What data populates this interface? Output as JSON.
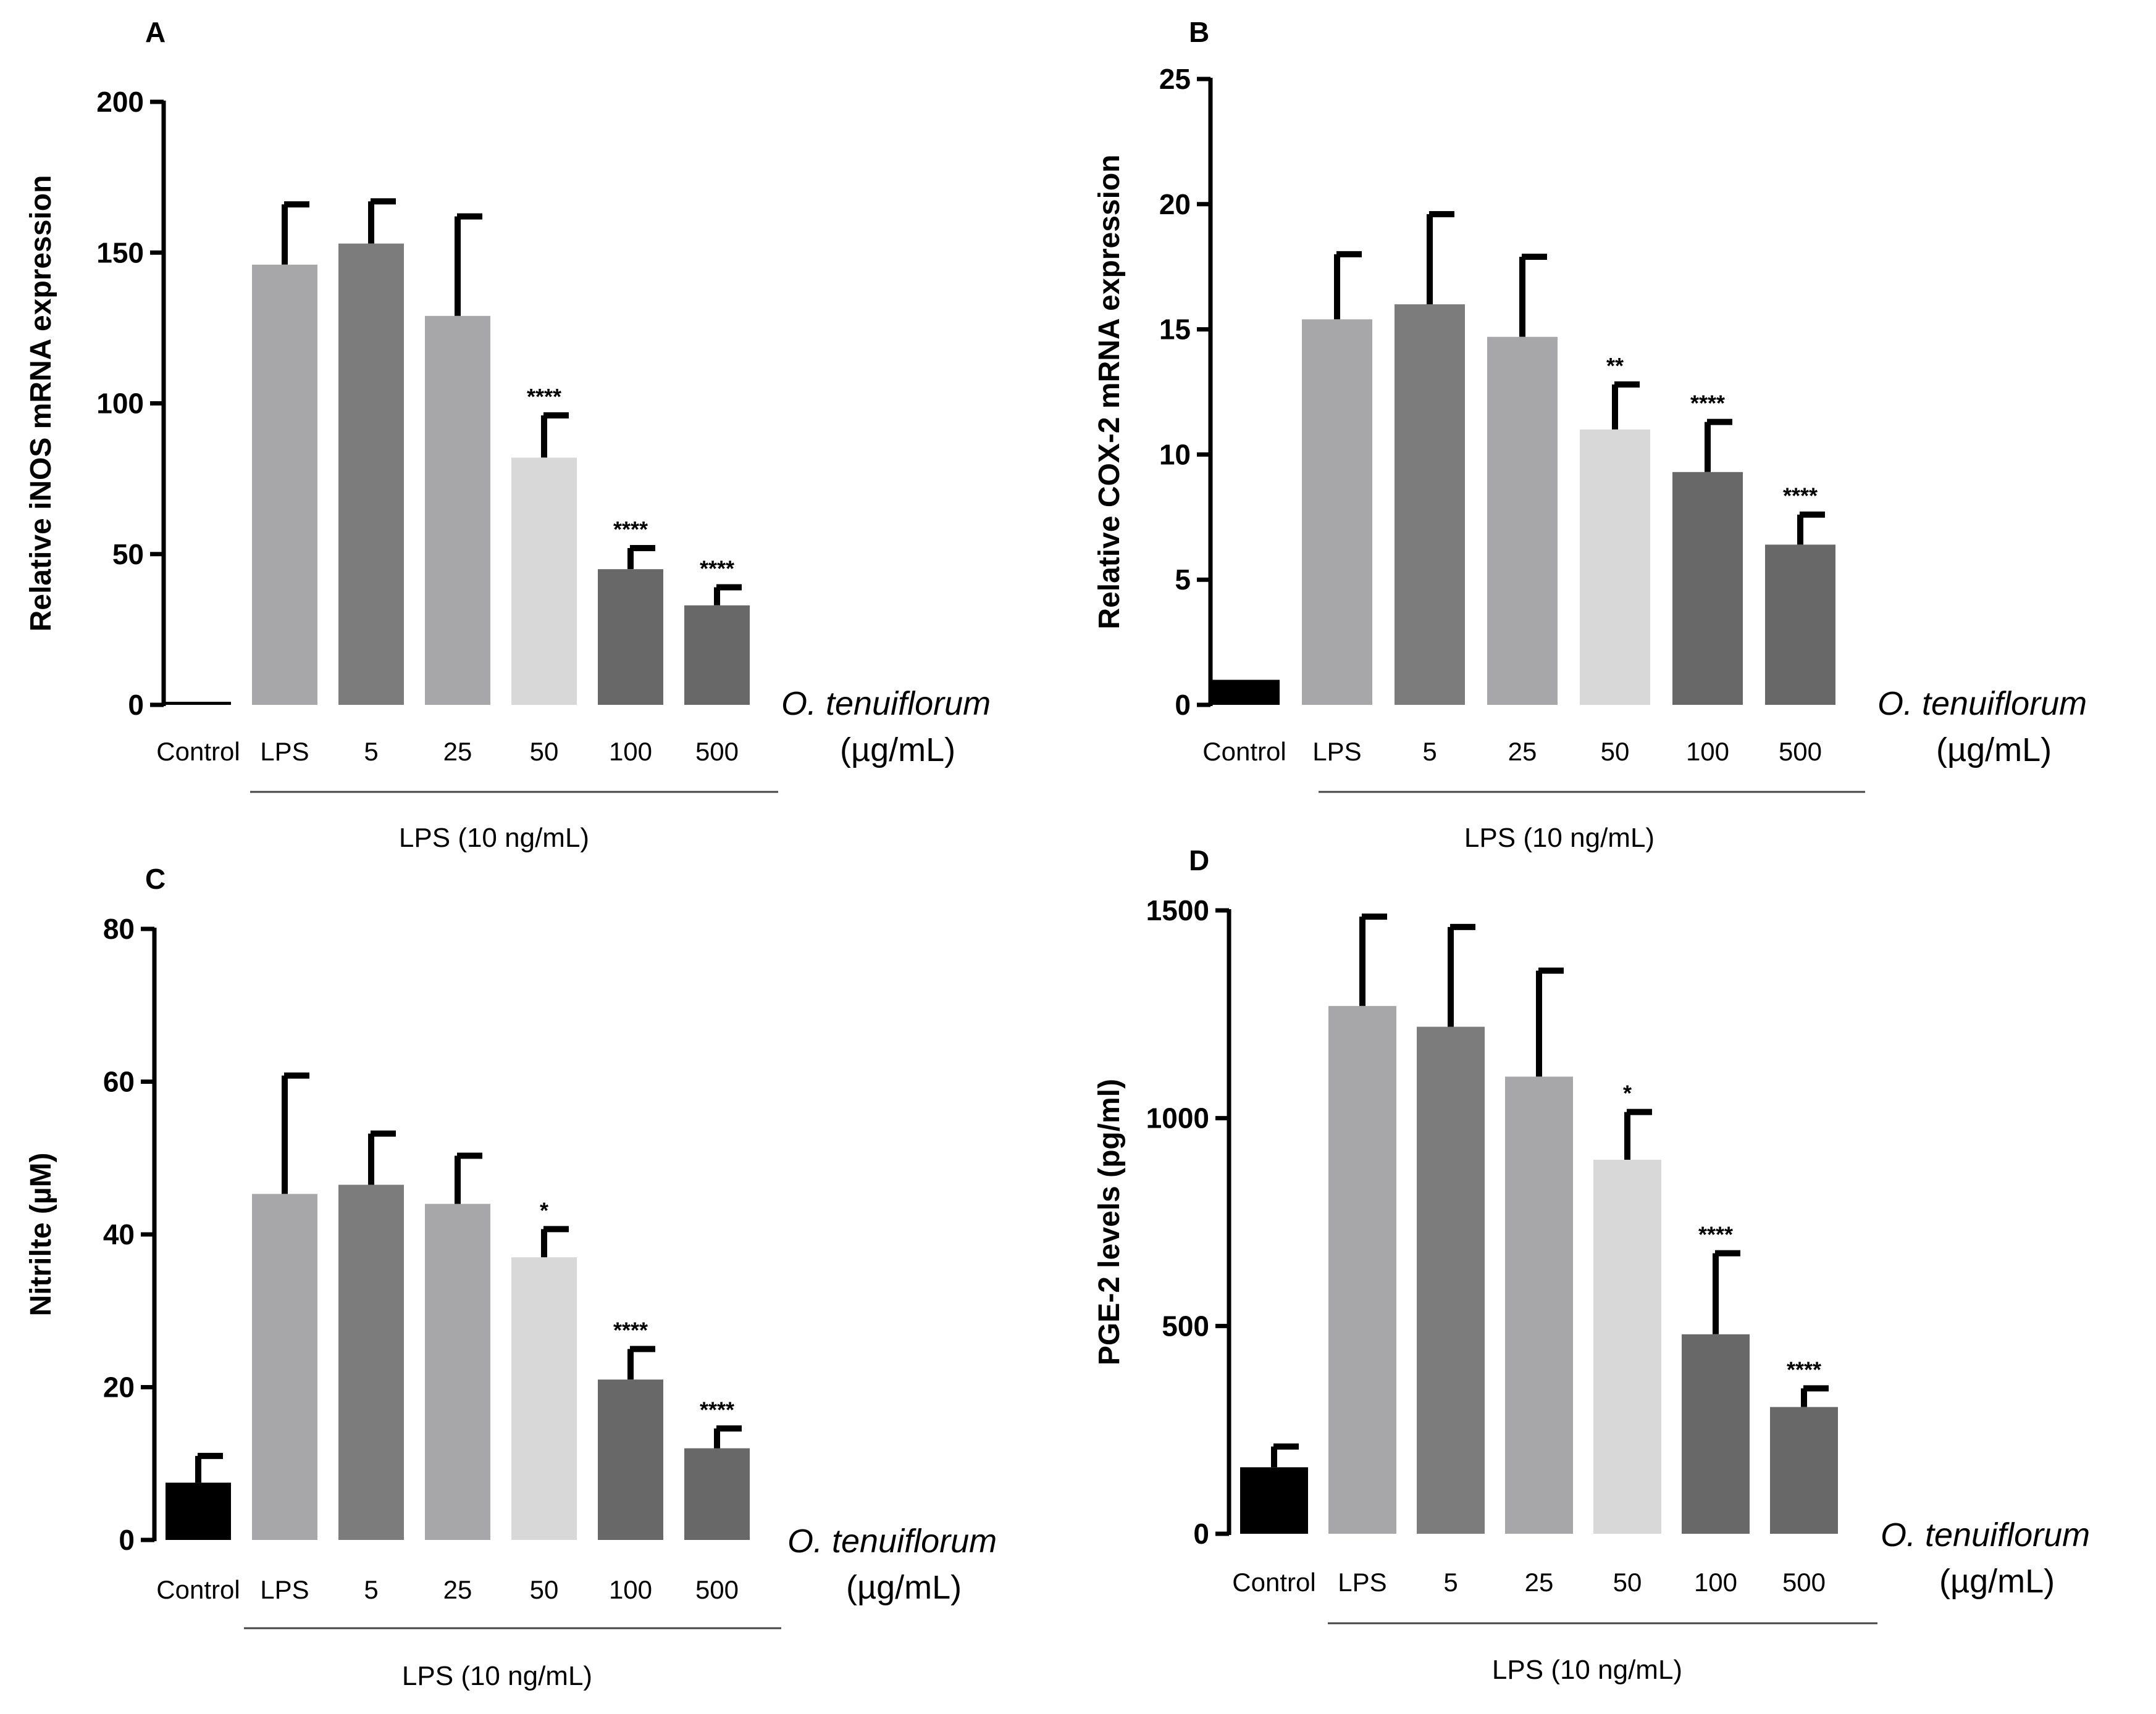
{
  "figure": {
    "group_label": "LPS (10 ng/mL)",
    "extract_label": "O. tenuiflorum",
    "unit_label": "(µg/mL)",
    "colors": {
      "Control": "#000000",
      "LPS": "#a7a7aa",
      "5": "#7c7c7c",
      "25": "#a7a7aa",
      "50": "#d8d8d8",
      "100": "#686868",
      "500": "#686868"
    }
  },
  "chart_data": [
    {
      "panel": "A",
      "type": "bar",
      "ylabel": "Relative iNOS mRNA expression",
      "ylim": [
        0,
        200
      ],
      "yticks": [
        0,
        50,
        100,
        150,
        200
      ],
      "categories": [
        "Control",
        "LPS",
        "5",
        "25",
        "50",
        "100",
        "500"
      ],
      "values": [
        1,
        146,
        153,
        129,
        82,
        45,
        33
      ],
      "errors": [
        0,
        20,
        14,
        33,
        14,
        7,
        6
      ],
      "significance": [
        "",
        "",
        "",
        "",
        "****",
        "****",
        "****"
      ]
    },
    {
      "panel": "B",
      "type": "bar",
      "ylabel": "Relative COX-2 mRNA expression",
      "ylim": [
        0,
        25
      ],
      "yticks": [
        0,
        5,
        10,
        15,
        20,
        25
      ],
      "categories": [
        "Control",
        "LPS",
        "5",
        "25",
        "50",
        "100",
        "500"
      ],
      "values": [
        1,
        15.4,
        16,
        14.7,
        11,
        9.3,
        6.4
      ],
      "errors": [
        0,
        2.6,
        3.6,
        3.2,
        1.8,
        2,
        1.2
      ],
      "significance": [
        "",
        "",
        "",
        "",
        "**",
        "****",
        "****"
      ]
    },
    {
      "panel": "C",
      "type": "bar",
      "ylabel": "Nitrilte (µM)",
      "ylim": [
        0,
        80
      ],
      "yticks": [
        0,
        20,
        40,
        60,
        80
      ],
      "categories": [
        "Control",
        "LPS",
        "5",
        "25",
        "50",
        "100",
        "500"
      ],
      "values": [
        7.5,
        45.3,
        46.5,
        44,
        37,
        21,
        12
      ],
      "errors": [
        3.5,
        15.5,
        6.7,
        6.3,
        3.7,
        4,
        2.6
      ],
      "significance": [
        "",
        "",
        "",
        "",
        "*",
        "****",
        "****"
      ]
    },
    {
      "panel": "D",
      "type": "bar",
      "ylabel": "PGE-2 levels (pg/ml)",
      "ylim": [
        0,
        1500
      ],
      "yticks": [
        0,
        500,
        1000,
        1500
      ],
      "categories": [
        "Control",
        "LPS",
        "5",
        "25",
        "50",
        "100",
        "500"
      ],
      "values": [
        160,
        1270,
        1220,
        1100,
        900,
        480,
        305
      ],
      "errors": [
        50,
        215,
        240,
        255,
        115,
        195,
        45
      ],
      "significance": [
        "",
        "",
        "",
        "",
        "*",
        "****",
        "****"
      ]
    }
  ]
}
